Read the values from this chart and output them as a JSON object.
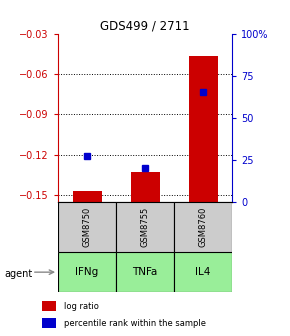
{
  "title": "GDS499 / 2711",
  "categories": [
    "IFNg",
    "TNFa",
    "IL4"
  ],
  "sample_ids": [
    "GSM8750",
    "GSM8755",
    "GSM8760"
  ],
  "log_ratios": [
    -0.147,
    -0.133,
    -0.047
  ],
  "percentile_ranks": [
    27,
    20,
    65
  ],
  "ylim_left": [
    -0.155,
    -0.03
  ],
  "ylim_right": [
    0,
    100
  ],
  "left_ticks": [
    -0.15,
    -0.12,
    -0.09,
    -0.06,
    -0.03
  ],
  "right_ticks": [
    0,
    25,
    50,
    75,
    100
  ],
  "right_tick_labels": [
    "0",
    "25",
    "50",
    "75",
    "100%"
  ],
  "bar_color": "#cc0000",
  "point_color": "#0000cc",
  "bar_width": 0.5,
  "sample_box_color": "#cccccc",
  "agent_box_color": "#99ee99",
  "agent_label": "agent",
  "arrow_color": "#888888",
  "left_axis_color": "#cc0000",
  "right_axis_color": "#0000cc"
}
